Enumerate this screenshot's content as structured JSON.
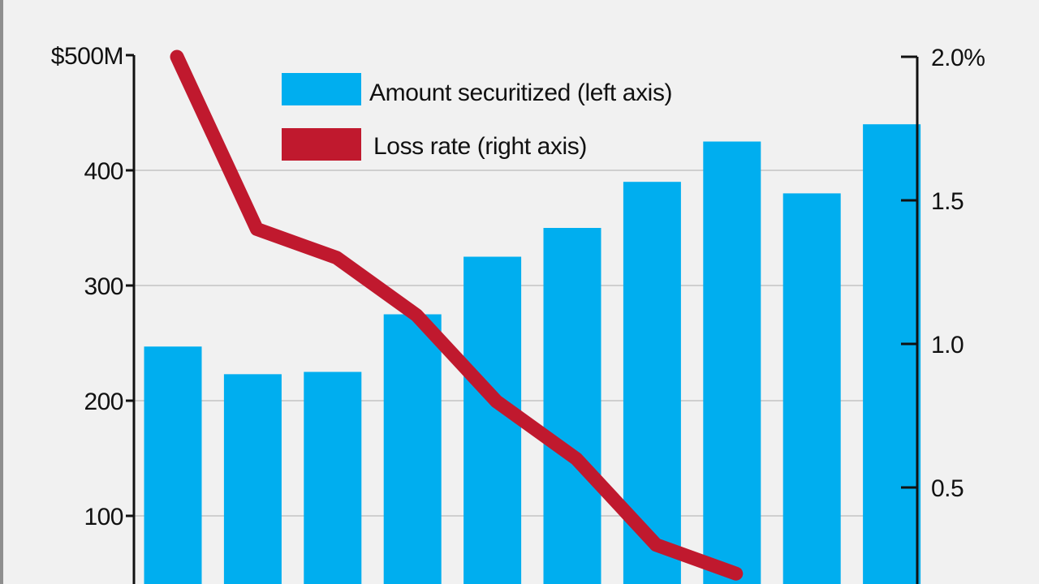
{
  "chart_data": {
    "type": "bar",
    "categories": [
      "",
      "",
      "",
      "",
      "",
      "",
      "",
      "",
      "",
      ""
    ],
    "series": [
      {
        "name": "Amount securitized (left axis)",
        "type": "bar",
        "axis": "left",
        "values": [
          247,
          223,
          225,
          275,
          325,
          350,
          390,
          425,
          380,
          440
        ]
      },
      {
        "name": "Loss rate (right axis)",
        "type": "line",
        "axis": "right",
        "values": [
          2.0,
          1.4,
          1.3,
          1.1,
          0.8,
          0.6,
          0.3,
          0.2,
          null,
          null
        ]
      }
    ],
    "left_axis": {
      "ylim": [
        0,
        500
      ],
      "ticks": [
        100,
        200,
        300,
        400,
        500
      ],
      "tick_labels": [
        "100",
        "200",
        "300",
        "400",
        "$500M"
      ]
    },
    "right_axis": {
      "ylim": [
        0,
        2.0
      ],
      "ticks": [
        0.5,
        1.0,
        1.5,
        2.0
      ],
      "tick_labels": [
        "0.5",
        "1.0",
        "1.5",
        "2.0%"
      ]
    },
    "grid": true,
    "legend_position": "top",
    "colors": {
      "bar": "#00aeef",
      "line": "#c0192e",
      "grid": "#cfcfcf",
      "axis": "#111111",
      "background": "#f1f1f1"
    }
  }
}
